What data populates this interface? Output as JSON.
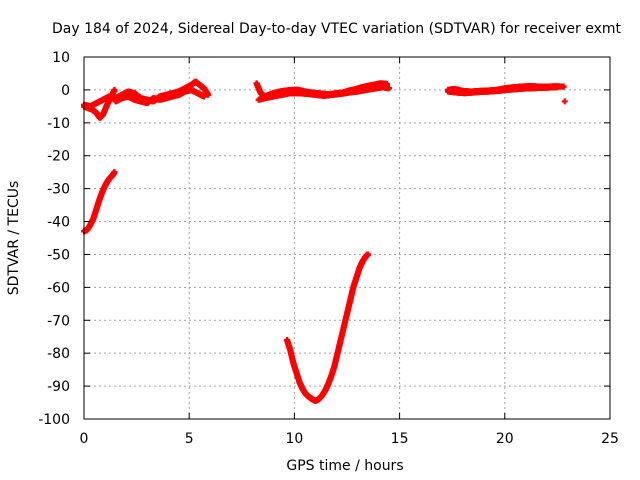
{
  "chart_data": {
    "type": "scatter",
    "title": "Day 184 of 2024, Sidereal Day-to-day VTEC variation (SDTVAR) for receiver exmt",
    "xlabel": "GPS time / hours",
    "ylabel": "SDTVAR / TECUs",
    "xlim": [
      0,
      25
    ],
    "ylim": [
      -100,
      10
    ],
    "x_ticks": [
      0,
      5,
      10,
      15,
      20,
      25
    ],
    "y_ticks": [
      10,
      0,
      -10,
      -20,
      -30,
      -40,
      -50,
      -60,
      -70,
      -80,
      -90,
      -100
    ],
    "x_tick_labels": [
      "0",
      "5",
      "10",
      "15",
      "20",
      "25"
    ],
    "y_tick_labels": [
      "10",
      "0",
      "-10",
      "-20",
      "-30",
      "-40",
      "-50",
      "-60",
      "-70",
      "-80",
      "-90",
      "-100"
    ],
    "grid": true,
    "marker": "plus",
    "color": "#ff0000",
    "series": [
      {
        "segments": [
          [
            [
              0.0,
              -5
            ],
            [
              0.2,
              -5.5
            ],
            [
              0.4,
              -6
            ],
            [
              0.6,
              -7
            ],
            [
              0.75,
              -8.5
            ],
            [
              0.9,
              -7.5
            ],
            [
              1.1,
              -4.5
            ],
            [
              1.3,
              -2
            ],
            [
              1.45,
              0
            ]
          ],
          [
            [
              0.0,
              -4.5
            ],
            [
              0.3,
              -5
            ],
            [
              0.6,
              -4
            ],
            [
              0.9,
              -3
            ],
            [
              1.2,
              -2
            ],
            [
              1.5,
              -2.5
            ],
            [
              1.8,
              -1.5
            ],
            [
              2.1,
              -0.5
            ],
            [
              2.4,
              -1
            ],
            [
              2.7,
              -2.5
            ],
            [
              3.0,
              -3
            ],
            [
              3.3,
              -3.5
            ],
            [
              3.6,
              -2
            ],
            [
              3.9,
              -1.5
            ],
            [
              4.2,
              -1
            ],
            [
              4.5,
              -0.5
            ],
            [
              4.8,
              0.5
            ],
            [
              5.1,
              1.5
            ],
            [
              5.3,
              2.5
            ],
            [
              5.5,
              1.5
            ],
            [
              5.7,
              0.5
            ],
            [
              5.9,
              -1.5
            ]
          ],
          [
            [
              1.5,
              -3.5
            ],
            [
              1.8,
              -2.5
            ],
            [
              2.1,
              -2
            ],
            [
              2.4,
              -3
            ],
            [
              2.7,
              -3.5
            ],
            [
              3.0,
              -4
            ],
            [
              3.3,
              -2.5
            ],
            [
              3.6,
              -3
            ],
            [
              3.9,
              -2.5
            ],
            [
              4.2,
              -2
            ],
            [
              4.5,
              -1.5
            ],
            [
              4.8,
              -0.5
            ],
            [
              5.1,
              0
            ],
            [
              5.4,
              -1
            ],
            [
              5.7,
              -2
            ]
          ],
          [
            [
              8.2,
              2
            ],
            [
              8.4,
              -1
            ],
            [
              8.6,
              -2
            ],
            [
              8.8,
              -1.5
            ],
            [
              9.0,
              -1
            ],
            [
              9.3,
              -0.5
            ],
            [
              9.6,
              -0.2
            ],
            [
              9.9,
              0
            ],
            [
              10.2,
              0
            ],
            [
              10.5,
              -0.5
            ],
            [
              10.8,
              -0.8
            ],
            [
              11.1,
              -1
            ],
            [
              11.4,
              -1.2
            ],
            [
              11.7,
              -1.3
            ],
            [
              12.0,
              -1
            ],
            [
              12.3,
              -0.8
            ],
            [
              12.6,
              -0.2
            ],
            [
              12.9,
              0.2
            ],
            [
              13.2,
              0.8
            ],
            [
              13.5,
              1.2
            ],
            [
              13.8,
              1.6
            ],
            [
              14.1,
              2
            ],
            [
              14.4,
              1.8
            ]
          ],
          [
            [
              8.3,
              -3
            ],
            [
              8.6,
              -2.5
            ],
            [
              9.0,
              -2
            ],
            [
              9.4,
              -1.5
            ],
            [
              9.8,
              -1
            ],
            [
              10.2,
              -1
            ],
            [
              10.6,
              -1.2
            ],
            [
              11.0,
              -1.5
            ],
            [
              11.4,
              -1.8
            ],
            [
              11.8,
              -1.5
            ],
            [
              12.2,
              -1.2
            ],
            [
              12.6,
              -0.8
            ],
            [
              13.0,
              -0.5
            ],
            [
              13.4,
              0
            ],
            [
              13.8,
              0.4
            ],
            [
              14.2,
              0.8
            ],
            [
              14.5,
              0.5
            ]
          ],
          [
            [
              17.3,
              0
            ],
            [
              17.6,
              0.3
            ],
            [
              18.0,
              -0.3
            ],
            [
              18.4,
              -0.5
            ],
            [
              18.8,
              -0.3
            ],
            [
              19.2,
              -0.2
            ],
            [
              19.6,
              0
            ],
            [
              20.0,
              0.5
            ],
            [
              20.4,
              0.8
            ],
            [
              20.8,
              1
            ],
            [
              21.2,
              1.2
            ],
            [
              21.6,
              1
            ],
            [
              22.0,
              1
            ],
            [
              22.4,
              1.1
            ],
            [
              22.8,
              1
            ]
          ],
          [
            [
              17.3,
              -0.5
            ],
            [
              17.7,
              -0.8
            ],
            [
              18.1,
              -1
            ],
            [
              18.5,
              -0.8
            ],
            [
              18.9,
              -0.6
            ],
            [
              19.3,
              -0.5
            ],
            [
              19.7,
              -0.3
            ],
            [
              20.1,
              0
            ],
            [
              20.5,
              0.2
            ],
            [
              20.9,
              0.4
            ],
            [
              21.3,
              0.5
            ],
            [
              21.7,
              0.6
            ],
            [
              22.1,
              0.7
            ],
            [
              22.5,
              0.8
            ]
          ],
          [
            [
              22.85,
              -3.5
            ]
          ],
          [
            [
              0.0,
              -43
            ],
            [
              0.15,
              -42.5
            ],
            [
              0.3,
              -41
            ],
            [
              0.45,
              -39
            ],
            [
              0.6,
              -36
            ],
            [
              0.75,
              -33
            ],
            [
              0.9,
              -30.5
            ],
            [
              1.05,
              -28.5
            ],
            [
              1.2,
              -27
            ],
            [
              1.35,
              -26
            ],
            [
              1.45,
              -25
            ]
          ],
          [
            [
              9.65,
              -76
            ],
            [
              9.8,
              -79
            ],
            [
              9.95,
              -83
            ],
            [
              10.1,
              -86
            ],
            [
              10.25,
              -89
            ],
            [
              10.4,
              -91
            ],
            [
              10.55,
              -92.5
            ],
            [
              10.7,
              -93.3
            ],
            [
              10.85,
              -94
            ],
            [
              11.0,
              -94.5
            ],
            [
              11.15,
              -94
            ],
            [
              11.3,
              -93
            ],
            [
              11.45,
              -91.5
            ],
            [
              11.6,
              -89.5
            ],
            [
              11.75,
              -87
            ],
            [
              11.9,
              -84
            ],
            [
              12.05,
              -80
            ],
            [
              12.2,
              -76
            ],
            [
              12.35,
              -72
            ],
            [
              12.5,
              -68
            ],
            [
              12.65,
              -64
            ],
            [
              12.8,
              -60
            ],
            [
              12.95,
              -57
            ],
            [
              13.1,
              -54
            ],
            [
              13.25,
              -52
            ],
            [
              13.4,
              -50.5
            ],
            [
              13.5,
              -50
            ]
          ]
        ]
      }
    ]
  }
}
